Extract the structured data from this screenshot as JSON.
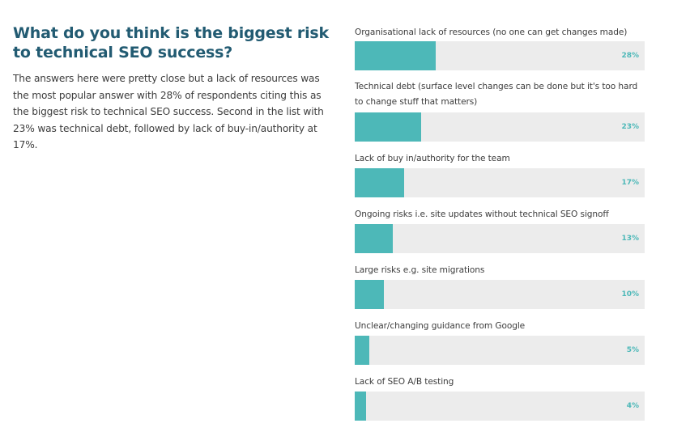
{
  "intro": {
    "heading": "What do you think is the biggest risk to technical SEO success?",
    "body": "The answers here were pretty close but a lack of resources was the most popular answer with 28% of respondents citing this as the biggest risk to technical SEO success. Second in the list with 23% was technical debt, followed by lack of buy-in/authority at 17%."
  },
  "colors": {
    "heading": "#225b72",
    "bar_fill": "#4db8b8",
    "bar_track": "#ececec",
    "percent_label": "#4db8b8",
    "body_text": "#3d3d3d"
  },
  "chart_data": {
    "type": "bar",
    "orientation": "horizontal",
    "title": "What do you think is the biggest risk to technical SEO success?",
    "xlabel": "",
    "ylabel": "",
    "xlim": [
      0,
      100
    ],
    "unit": "%",
    "grid": false,
    "legend": "none",
    "categories": [
      "Organisational lack of resources (no one can get changes made)",
      "Technical debt (surface level changes can be done but it's too hard to change stuff that matters)",
      "Lack of buy in/authority for the team",
      "Ongoing risks i.e. site updates without technical SEO signoff",
      "Large risks e.g. site migrations",
      "Unclear/changing guidance from Google",
      "Lack of SEO A/B testing"
    ],
    "values": [
      28,
      23,
      17,
      13,
      10,
      5,
      4
    ],
    "value_labels": [
      "28%",
      "23%",
      "17%",
      "13%",
      "10%",
      "5%",
      "4%"
    ]
  }
}
